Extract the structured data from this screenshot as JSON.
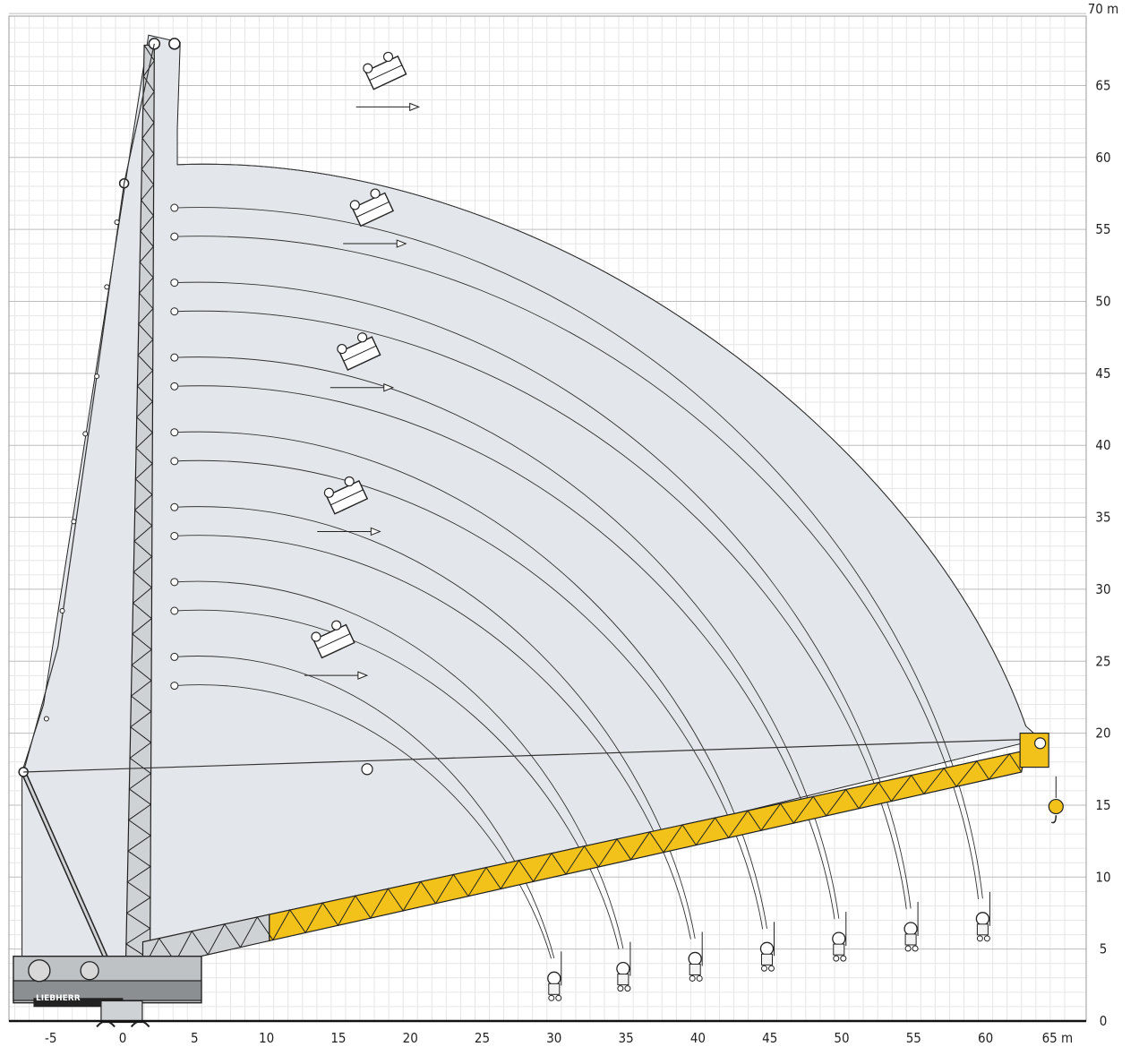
{
  "diagram": {
    "brand_label": "LIEBHERR",
    "x_axis": {
      "unit": "m",
      "ticks": [
        "-5",
        "0",
        "5",
        "10",
        "15",
        "20",
        "25",
        "30",
        "35",
        "40",
        "45",
        "50",
        "55",
        "60",
        "65 m"
      ]
    },
    "y_axis": {
      "unit": "m",
      "ticks": [
        "0",
        "5",
        "10",
        "15",
        "20",
        "25",
        "30",
        "35",
        "40",
        "45",
        "50",
        "55",
        "60",
        "65",
        "70 m"
      ]
    },
    "colors": {
      "envelope_fill": "#e3e6ea",
      "boom_yellow": "#f2c21b",
      "mast_gray": "#cfd2d5",
      "outline": "#222222"
    },
    "envelope_pairs": [
      {
        "start_y": 23.3,
        "end_x": 29.8
      },
      {
        "start_y": 25.3,
        "end_x": 30.0
      },
      {
        "start_y": 28.5,
        "end_x": 34.5
      },
      {
        "start_y": 30.5,
        "end_x": 34.8
      },
      {
        "start_y": 33.7,
        "end_x": 39.5
      },
      {
        "start_y": 35.7,
        "end_x": 39.8
      },
      {
        "start_y": 38.9,
        "end_x": 44.5
      },
      {
        "start_y": 40.9,
        "end_x": 44.8
      },
      {
        "start_y": 44.1,
        "end_x": 49.5
      },
      {
        "start_y": 46.1,
        "end_x": 49.8
      },
      {
        "start_y": 49.3,
        "end_x": 54.5
      },
      {
        "start_y": 51.3,
        "end_x": 54.8
      },
      {
        "start_y": 54.5,
        "end_x": 59.5
      },
      {
        "start_y": 56.5,
        "end_x": 59.8
      }
    ],
    "outer_envelope": {
      "start_y": 59.5,
      "end_x": 63.8
    },
    "cab_positions_y": [
      26.5,
      36.5,
      46.5,
      56.5,
      66
    ]
  }
}
